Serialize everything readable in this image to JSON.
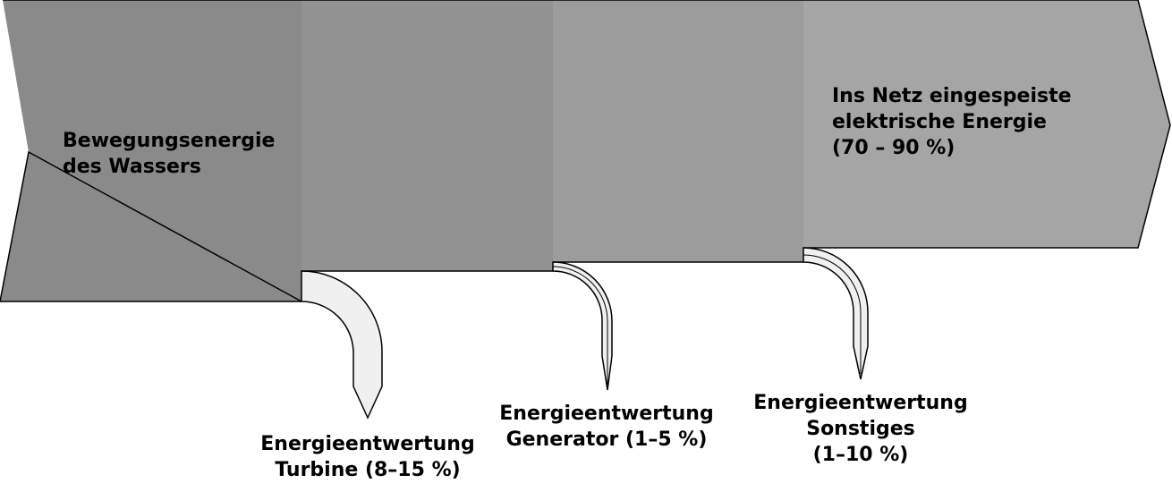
{
  "colors": {
    "stage1": "#8a8a8a",
    "stage2": "#929292",
    "stage3": "#9c9c9c",
    "stage4": "#a5a5a5",
    "loss_fill": "#f0f0f0",
    "stroke": "#000000"
  },
  "input": {
    "lines": [
      "Bewegungsenergie",
      "des Wassers"
    ]
  },
  "output": {
    "lines": [
      "Ins Netz eingespeiste",
      "elektrische Energie",
      "(70 – 90 %)"
    ]
  },
  "losses": [
    {
      "lines": [
        "Energieentwertung",
        "Turbine (8–15 %)"
      ]
    },
    {
      "lines": [
        "Energieentwertung",
        "Generator (1–5 %)"
      ]
    },
    {
      "lines": [
        "Energieentwertung",
        "Sonstiges",
        "(1–10 %)"
      ]
    }
  ]
}
